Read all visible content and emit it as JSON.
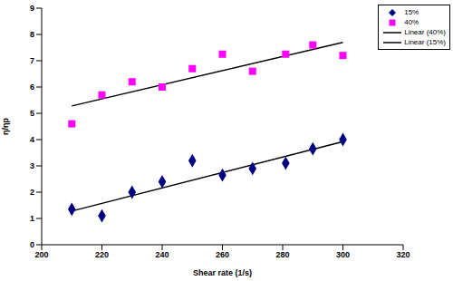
{
  "chart_data": {
    "type": "scatter",
    "xlabel": "Shear rate (1/s)",
    "ylabel": "η/ηp",
    "xlim": [
      200,
      320
    ],
    "xticks": [
      200,
      220,
      240,
      260,
      280,
      300,
      320
    ],
    "ylim": [
      0,
      9
    ],
    "yticks": [
      0,
      1,
      2,
      3,
      4,
      5,
      6,
      7,
      8,
      9
    ],
    "grid": false,
    "legend": "upper right",
    "series": [
      {
        "name": "15%",
        "type": "scatter",
        "marker": "diamond",
        "color": "#000080",
        "x": [
          210,
          220,
          230,
          240,
          250,
          260,
          270,
          281,
          290,
          300
        ],
        "values": [
          1.35,
          1.1,
          2.0,
          2.4,
          3.2,
          2.65,
          2.9,
          3.1,
          3.65,
          4.0
        ]
      },
      {
        "name": "40%",
        "type": "scatter",
        "marker": "square",
        "color": "#ff00ff",
        "x": [
          210,
          220,
          230,
          240,
          250,
          260,
          270,
          281,
          290,
          300
        ],
        "values": [
          4.6,
          5.7,
          6.2,
          6.0,
          6.7,
          7.25,
          6.6,
          7.25,
          7.6,
          7.2
        ]
      },
      {
        "name": "Linear (40%)",
        "type": "line",
        "line_style": "solid",
        "color": "#000000",
        "x": [
          210,
          300
        ],
        "values": [
          5.28,
          7.7
        ]
      },
      {
        "name": "Linear (15%)",
        "type": "line",
        "line_style": "solid",
        "color": "#000000",
        "x": [
          210,
          300
        ],
        "values": [
          1.28,
          3.92
        ]
      }
    ]
  }
}
